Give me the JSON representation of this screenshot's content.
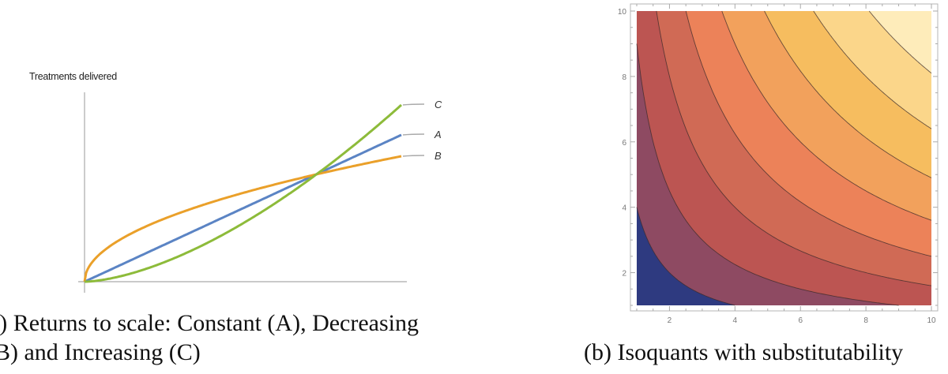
{
  "figure_a": {
    "caption_line1": "(a) Returns to scale: Constant (A), Decreasing",
    "caption_line2": "(B) and Increasing (C)"
  },
  "figure_b": {
    "caption": "(b) Isoquants with substitutability"
  },
  "chart_data": [
    {
      "type": "line",
      "ylabel": "Treatments delivered",
      "xlabel": "",
      "grid": false,
      "x": [
        0,
        0.125,
        0.25,
        0.375,
        0.5,
        0.625,
        0.75,
        0.875,
        1
      ],
      "series": [
        {
          "name": "A",
          "color": "#5b84c4",
          "exponent": 1
        },
        {
          "name": "B",
          "color": "#eaa02a",
          "exponent": 0.5
        },
        {
          "name": "C",
          "color": "#8dbb3a",
          "exponent": 1.6
        }
      ],
      "labels": [
        "C",
        "A",
        "B"
      ]
    },
    {
      "type": "heatmap",
      "subtype": "contour",
      "function": "sqrt(x*y)",
      "xlim": [
        1,
        10
      ],
      "ylim": [
        1,
        10
      ],
      "xticks": [
        2,
        4,
        6,
        8,
        10
      ],
      "yticks": [
        2,
        4,
        6,
        8,
        10
      ],
      "contour_levels": [
        2,
        3,
        4,
        5,
        6,
        7,
        8,
        9
      ],
      "band_colors": [
        "#2e3a80",
        "#8e4a62",
        "#bc5552",
        "#d06a55",
        "#ec8259",
        "#f2a15c",
        "#f6bd5f",
        "#fbd68a",
        "#feecba"
      ]
    }
  ]
}
